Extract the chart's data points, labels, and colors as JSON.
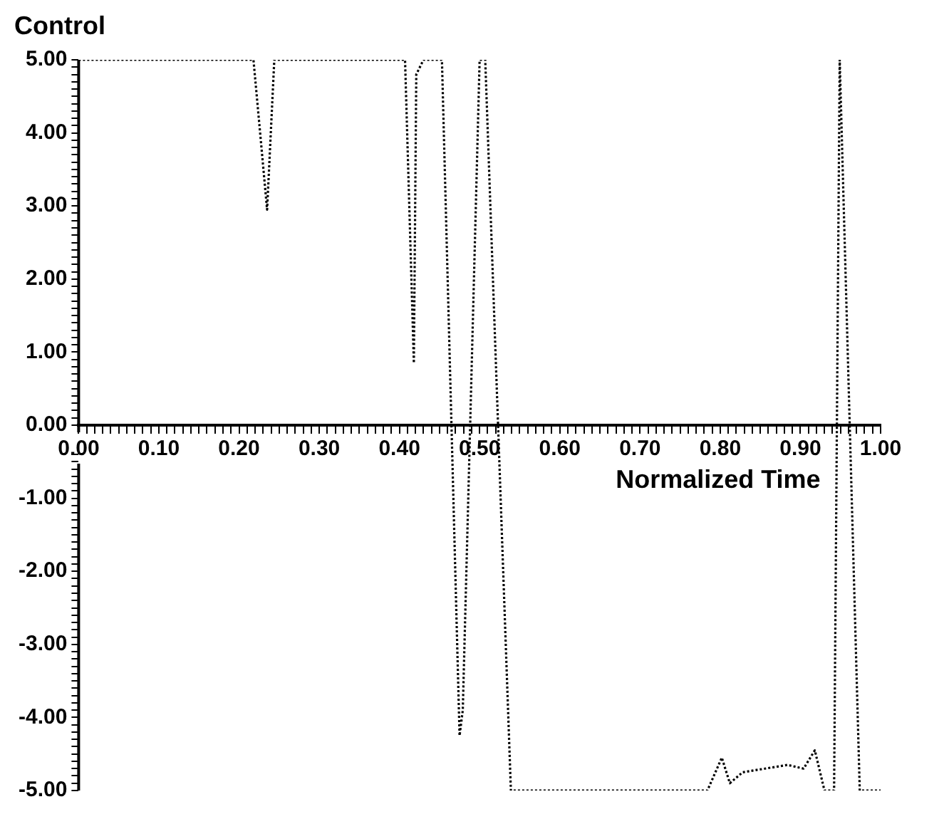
{
  "chart_data": {
    "type": "line",
    "xlabel": "Normalized Time",
    "ylabel": "Control",
    "x": [
      0,
      0.1,
      0.218,
      0.235,
      0.244,
      0.3,
      0.407,
      0.418,
      0.421,
      0.43,
      0.453,
      0.475,
      0.479,
      0.5,
      0.507,
      0.539,
      0.6,
      0.7,
      0.784,
      0.802,
      0.812,
      0.828,
      0.884,
      0.904,
      0.918,
      0.93,
      0.942,
      0.949,
      0.974,
      1.0
    ],
    "series": [
      {
        "color": "#000000",
        "values": [
          5,
          5,
          5,
          2.95,
          5,
          5,
          5,
          0.85,
          4.8,
          5,
          5,
          -4.25,
          -3.9,
          5,
          5,
          -5,
          -5,
          -5,
          -5,
          -4.55,
          -4.9,
          -4.75,
          -4.65,
          -4.7,
          -4.45,
          -5,
          -5,
          5,
          -5,
          -5
        ]
      }
    ],
    "xlim": [
      0,
      1
    ],
    "ylim": [
      -5,
      5
    ],
    "xticks": [
      {
        "value": 0,
        "label": "0.00"
      },
      {
        "value": 0.01,
        "label": null
      },
      {
        "value": 0.02,
        "label": null
      },
      {
        "value": 0.03,
        "label": null
      },
      {
        "value": 0.04,
        "label": null
      },
      {
        "value": 0.05,
        "label": null
      },
      {
        "value": 0.06,
        "label": null
      },
      {
        "value": 0.07,
        "label": null
      },
      {
        "value": 0.08,
        "label": null
      },
      {
        "value": 0.09,
        "label": null
      },
      {
        "value": 0.1,
        "label": "0.10"
      },
      {
        "value": 0.11,
        "label": null
      },
      {
        "value": 0.12,
        "label": null
      },
      {
        "value": 0.13,
        "label": null
      },
      {
        "value": 0.14,
        "label": null
      },
      {
        "value": 0.15,
        "label": null
      },
      {
        "value": 0.16,
        "label": null
      },
      {
        "value": 0.17,
        "label": null
      },
      {
        "value": 0.18,
        "label": null
      },
      {
        "value": 0.19,
        "label": null
      },
      {
        "value": 0.2,
        "label": "0.20"
      },
      {
        "value": 0.21,
        "label": null
      },
      {
        "value": 0.22,
        "label": null
      },
      {
        "value": 0.23,
        "label": null
      },
      {
        "value": 0.24,
        "label": null
      },
      {
        "value": 0.25,
        "label": null
      },
      {
        "value": 0.26,
        "label": null
      },
      {
        "value": 0.27,
        "label": null
      },
      {
        "value": 0.28,
        "label": null
      },
      {
        "value": 0.29,
        "label": null
      },
      {
        "value": 0.3,
        "label": "0.30"
      },
      {
        "value": 0.31,
        "label": null
      },
      {
        "value": 0.32,
        "label": null
      },
      {
        "value": 0.33,
        "label": null
      },
      {
        "value": 0.34,
        "label": null
      },
      {
        "value": 0.35,
        "label": null
      },
      {
        "value": 0.36,
        "label": null
      },
      {
        "value": 0.37,
        "label": null
      },
      {
        "value": 0.38,
        "label": null
      },
      {
        "value": 0.39,
        "label": null
      },
      {
        "value": 0.4,
        "label": "0.40"
      },
      {
        "value": 0.41,
        "label": null
      },
      {
        "value": 0.42,
        "label": null
      },
      {
        "value": 0.43,
        "label": null
      },
      {
        "value": 0.44,
        "label": null
      },
      {
        "value": 0.45,
        "label": null
      },
      {
        "value": 0.46,
        "label": null
      },
      {
        "value": 0.47,
        "label": null
      },
      {
        "value": 0.48,
        "label": null
      },
      {
        "value": 0.49,
        "label": null
      },
      {
        "value": 0.5,
        "label": "0.50"
      },
      {
        "value": 0.51,
        "label": null
      },
      {
        "value": 0.52,
        "label": null
      },
      {
        "value": 0.53,
        "label": null
      },
      {
        "value": 0.54,
        "label": null
      },
      {
        "value": 0.55,
        "label": null
      },
      {
        "value": 0.56,
        "label": null
      },
      {
        "value": 0.57,
        "label": null
      },
      {
        "value": 0.58,
        "label": null
      },
      {
        "value": 0.59,
        "label": null
      },
      {
        "value": 0.6,
        "label": "0.60"
      },
      {
        "value": 0.61,
        "label": null
      },
      {
        "value": 0.62,
        "label": null
      },
      {
        "value": 0.63,
        "label": null
      },
      {
        "value": 0.64,
        "label": null
      },
      {
        "value": 0.65,
        "label": null
      },
      {
        "value": 0.66,
        "label": null
      },
      {
        "value": 0.67,
        "label": null
      },
      {
        "value": 0.68,
        "label": null
      },
      {
        "value": 0.69,
        "label": null
      },
      {
        "value": 0.7,
        "label": "0.70"
      },
      {
        "value": 0.71,
        "label": null
      },
      {
        "value": 0.72,
        "label": null
      },
      {
        "value": 0.73,
        "label": null
      },
      {
        "value": 0.74,
        "label": null
      },
      {
        "value": 0.75,
        "label": null
      },
      {
        "value": 0.76,
        "label": null
      },
      {
        "value": 0.77,
        "label": null
      },
      {
        "value": 0.78,
        "label": null
      },
      {
        "value": 0.79,
        "label": null
      },
      {
        "value": 0.8,
        "label": "0.80"
      },
      {
        "value": 0.81,
        "label": null
      },
      {
        "value": 0.82,
        "label": null
      },
      {
        "value": 0.83,
        "label": null
      },
      {
        "value": 0.84,
        "label": null
      },
      {
        "value": 0.85,
        "label": null
      },
      {
        "value": 0.86,
        "label": null
      },
      {
        "value": 0.87,
        "label": null
      },
      {
        "value": 0.88,
        "label": null
      },
      {
        "value": 0.89,
        "label": null
      },
      {
        "value": 0.9,
        "label": "0.90"
      },
      {
        "value": 0.91,
        "label": null
      },
      {
        "value": 0.92,
        "label": null
      },
      {
        "value": 0.93,
        "label": null
      },
      {
        "value": 0.94,
        "label": null
      },
      {
        "value": 0.95,
        "label": null
      },
      {
        "value": 0.96,
        "label": null
      },
      {
        "value": 0.97,
        "label": null
      },
      {
        "value": 0.98,
        "label": null
      },
      {
        "value": 0.99,
        "label": null
      },
      {
        "value": 1,
        "label": "1.00"
      }
    ],
    "yticks": [
      {
        "value": -5,
        "label": "-5.00"
      },
      {
        "value": -4.9,
        "label": null
      },
      {
        "value": -4.8,
        "label": null
      },
      {
        "value": -4.7,
        "label": null
      },
      {
        "value": -4.6,
        "label": null
      },
      {
        "value": -4.5,
        "label": null
      },
      {
        "value": -4.4,
        "label": null
      },
      {
        "value": -4.3,
        "label": null
      },
      {
        "value": -4.2,
        "label": null
      },
      {
        "value": -4.1,
        "label": null
      },
      {
        "value": -4,
        "label": "-4.00"
      },
      {
        "value": -3.9,
        "label": null
      },
      {
        "value": -3.8,
        "label": null
      },
      {
        "value": -3.7,
        "label": null
      },
      {
        "value": -3.6,
        "label": null
      },
      {
        "value": -3.5,
        "label": null
      },
      {
        "value": -3.4,
        "label": null
      },
      {
        "value": -3.3,
        "label": null
      },
      {
        "value": -3.2,
        "label": null
      },
      {
        "value": -3.1,
        "label": null
      },
      {
        "value": -3,
        "label": "-3.00"
      },
      {
        "value": -2.9,
        "label": null
      },
      {
        "value": -2.8,
        "label": null
      },
      {
        "value": -2.7,
        "label": null
      },
      {
        "value": -2.6,
        "label": null
      },
      {
        "value": -2.5,
        "label": null
      },
      {
        "value": -2.4,
        "label": null
      },
      {
        "value": -2.3,
        "label": null
      },
      {
        "value": -2.2,
        "label": null
      },
      {
        "value": -2.1,
        "label": null
      },
      {
        "value": -2,
        "label": "-2.00"
      },
      {
        "value": -1.9,
        "label": null
      },
      {
        "value": -1.8,
        "label": null
      },
      {
        "value": -1.7,
        "label": null
      },
      {
        "value": -1.6,
        "label": null
      },
      {
        "value": -1.5,
        "label": null
      },
      {
        "value": -1.4,
        "label": null
      },
      {
        "value": -1.3,
        "label": null
      },
      {
        "value": -1.2,
        "label": null
      },
      {
        "value": -1.1,
        "label": null
      },
      {
        "value": -1,
        "label": "-1.00"
      },
      {
        "value": -0.9,
        "label": null
      },
      {
        "value": -0.8,
        "label": null
      },
      {
        "value": -0.7,
        "label": null
      },
      {
        "value": -0.6,
        "label": null
      },
      {
        "value": -0.5,
        "label": null
      },
      {
        "value": -0.4,
        "label": null
      },
      {
        "value": 0,
        "label": "0.00"
      },
      {
        "value": 0.1,
        "label": null
      },
      {
        "value": 0.2,
        "label": null
      },
      {
        "value": 0.3,
        "label": null
      },
      {
        "value": 0.4,
        "label": null
      },
      {
        "value": 0.5,
        "label": null
      },
      {
        "value": 0.6,
        "label": null
      },
      {
        "value": 0.7,
        "label": null
      },
      {
        "value": 0.8,
        "label": null
      },
      {
        "value": 0.9,
        "label": null
      },
      {
        "value": 1,
        "label": "1.00"
      },
      {
        "value": 1.1,
        "label": null
      },
      {
        "value": 1.2,
        "label": null
      },
      {
        "value": 1.3,
        "label": null
      },
      {
        "value": 1.4,
        "label": null
      },
      {
        "value": 1.5,
        "label": null
      },
      {
        "value": 1.6,
        "label": null
      },
      {
        "value": 1.7,
        "label": null
      },
      {
        "value": 1.8,
        "label": null
      },
      {
        "value": 1.9,
        "label": null
      },
      {
        "value": 2,
        "label": "2.00"
      },
      {
        "value": 2.1,
        "label": null
      },
      {
        "value": 2.2,
        "label": null
      },
      {
        "value": 2.3,
        "label": null
      },
      {
        "value": 2.4,
        "label": null
      },
      {
        "value": 2.5,
        "label": null
      },
      {
        "value": 2.6,
        "label": null
      },
      {
        "value": 2.7,
        "label": null
      },
      {
        "value": 2.8,
        "label": null
      },
      {
        "value": 2.9,
        "label": null
      },
      {
        "value": 3,
        "label": "3.00"
      },
      {
        "value": 3.1,
        "label": null
      },
      {
        "value": 3.2,
        "label": null
      },
      {
        "value": 3.3,
        "label": null
      },
      {
        "value": 3.4,
        "label": null
      },
      {
        "value": 3.5,
        "label": null
      },
      {
        "value": 3.6,
        "label": null
      },
      {
        "value": 3.7,
        "label": null
      },
      {
        "value": 3.8,
        "label": null
      },
      {
        "value": 3.9,
        "label": null
      },
      {
        "value": 4,
        "label": "4.00"
      },
      {
        "value": 4.1,
        "label": null
      },
      {
        "value": 4.2,
        "label": null
      },
      {
        "value": 4.3,
        "label": null
      },
      {
        "value": 4.4,
        "label": null
      },
      {
        "value": 4.5,
        "label": null
      },
      {
        "value": 4.6,
        "label": null
      },
      {
        "value": 4.7,
        "label": null
      },
      {
        "value": 4.8,
        "label": null
      },
      {
        "value": 4.9,
        "label": null
      },
      {
        "value": 5,
        "label": "5.00"
      }
    ],
    "grid": false,
    "legend": false,
    "marker": "none",
    "line_style": "dotted"
  }
}
